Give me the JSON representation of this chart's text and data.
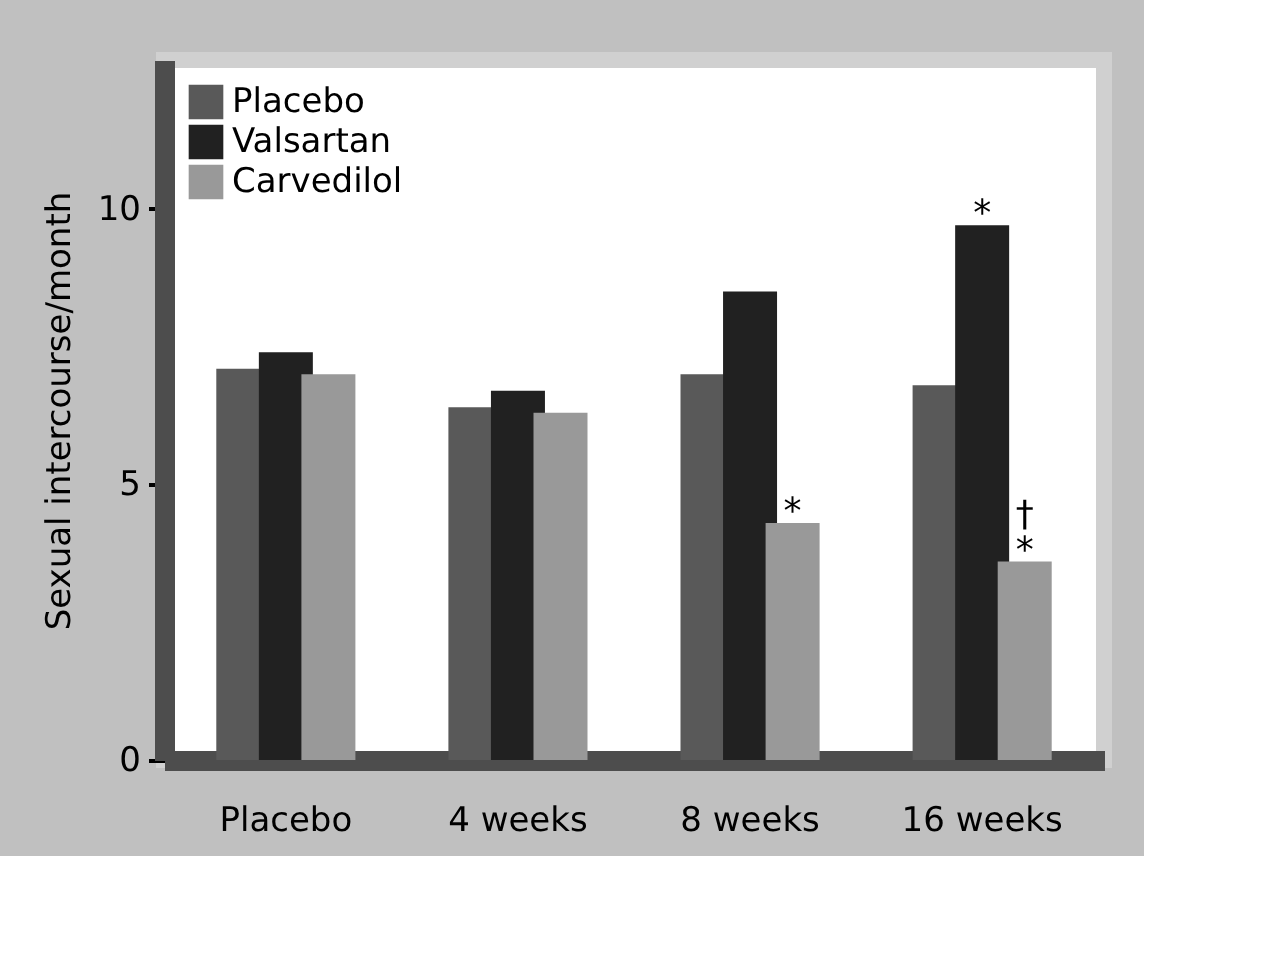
{
  "chart_data": {
    "type": "bar",
    "ylabel": "Sexual intercourse/month",
    "categories": [
      "Placebo",
      "4 weeks",
      "8 weeks",
      "16 weeks"
    ],
    "series": [
      {
        "name": "Placebo",
        "color": "#595959",
        "values": [
          7.1,
          6.4,
          7.0,
          6.8
        ]
      },
      {
        "name": "Valsartan",
        "color": "#212121",
        "values": [
          7.4,
          6.7,
          8.5,
          9.7
        ],
        "value_labels": [
          null,
          null,
          null,
          "*"
        ]
      },
      {
        "name": "Carvedilol",
        "color": "#999999",
        "values": [
          7.0,
          6.3,
          4.3,
          3.6
        ],
        "value_labels": [
          null,
          null,
          "*",
          "†\n*"
        ]
      }
    ],
    "ylim": [
      0,
      12.7
    ],
    "yticks": [
      0,
      5,
      10
    ],
    "grid": false,
    "legend": "top left"
  }
}
